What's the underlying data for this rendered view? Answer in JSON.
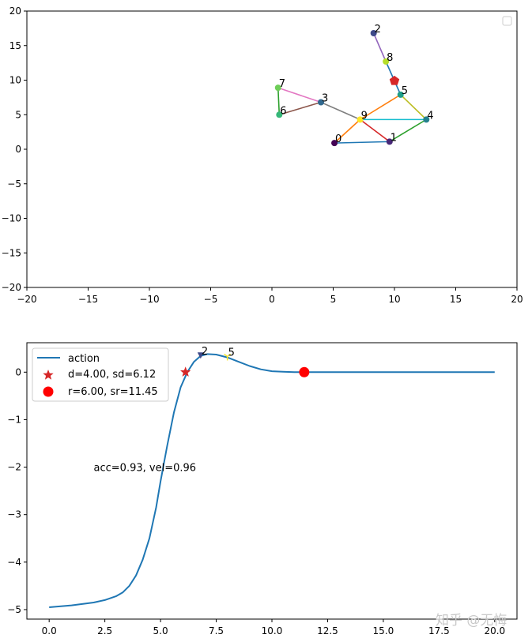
{
  "chart_data": [
    {
      "type": "scatter",
      "title": "",
      "xlabel": "",
      "ylabel": "",
      "xlim": [
        -20,
        20
      ],
      "ylim": [
        -20,
        20
      ],
      "xticks": [
        -20,
        -15,
        -10,
        -5,
        0,
        5,
        10,
        15,
        20
      ],
      "yticks": [
        -20,
        -15,
        -10,
        -5,
        0,
        5,
        10,
        15,
        20
      ],
      "xtick_labels": [
        "−20",
        "−15",
        "−10",
        "−5",
        "0",
        "5",
        "10",
        "15",
        "20"
      ],
      "ytick_labels": [
        "−20",
        "−15",
        "−10",
        "−5",
        "0",
        "5",
        "10",
        "15",
        "20"
      ],
      "grid": false,
      "legend": "top-right (empty)",
      "points": [
        {
          "label": "0",
          "x": 5.1,
          "y": 0.9,
          "color": "#440154"
        },
        {
          "label": "1",
          "x": 9.6,
          "y": 1.1,
          "color": "#482878"
        },
        {
          "label": "2",
          "x": 8.3,
          "y": 16.8,
          "color": "#3e4989"
        },
        {
          "label": "3",
          "x": 4.0,
          "y": 6.8,
          "color": "#31688e"
        },
        {
          "label": "4",
          "x": 12.6,
          "y": 4.3,
          "color": "#26828e"
        },
        {
          "label": "5",
          "x": 10.5,
          "y": 7.9,
          "color": "#1f9e89"
        },
        {
          "label": "6",
          "x": 0.6,
          "y": 5.0,
          "color": "#35b779"
        },
        {
          "label": "7",
          "x": 0.5,
          "y": 8.9,
          "color": "#6ece58"
        },
        {
          "label": "8",
          "x": 9.3,
          "y": 12.7,
          "color": "#b5de2b"
        },
        {
          "label": "9",
          "x": 7.2,
          "y": 4.3,
          "color": "#fde725"
        }
      ],
      "edges": [
        {
          "from": 0,
          "to": 1,
          "color": "#1f77b4"
        },
        {
          "from": 0,
          "to": 9,
          "color": "#ff7f0e"
        },
        {
          "from": 1,
          "to": 4,
          "color": "#2ca02c"
        },
        {
          "from": 1,
          "to": 9,
          "color": "#d62728"
        },
        {
          "from": 2,
          "to": 8,
          "color": "#9467bd"
        },
        {
          "from": 3,
          "to": 6,
          "color": "#8c564b"
        },
        {
          "from": 3,
          "to": 7,
          "color": "#e377c2"
        },
        {
          "from": 3,
          "to": 9,
          "color": "#7f7f7f"
        },
        {
          "from": 4,
          "to": 5,
          "color": "#bcbd22"
        },
        {
          "from": 4,
          "to": 9,
          "color": "#17becf"
        },
        {
          "from": 5,
          "to": 9,
          "color": "#ff7f0e"
        },
        {
          "from": 5,
          "to": 8,
          "color": "#1f77b4"
        },
        {
          "from": 6,
          "to": 7,
          "color": "#2ca02c"
        }
      ],
      "target_marker": {
        "x": 10.0,
        "y": 9.9,
        "color": "#d62728",
        "shape": "pentagon"
      }
    },
    {
      "type": "line",
      "title": "",
      "xlabel": "",
      "ylabel": "",
      "xlim": [
        -1,
        21
      ],
      "ylim": [
        -5.2,
        0.62
      ],
      "xticks": [
        0,
        2.5,
        5,
        7.5,
        10,
        12.5,
        15,
        17.5,
        20
      ],
      "yticks": [
        0,
        -1,
        -2,
        -3,
        -4,
        -5
      ],
      "xtick_labels": [
        "0.0",
        "2.5",
        "5.0",
        "7.5",
        "10.0",
        "12.5",
        "15.0",
        "17.5",
        "20.0"
      ],
      "ytick_labels": [
        "0",
        "−1",
        "−2",
        "−3",
        "−4",
        "−5"
      ],
      "grid": false,
      "legend": "top-left",
      "series": [
        {
          "name": "action",
          "color": "#1f77b4",
          "x": [
            0,
            1,
            2,
            2.5,
            3,
            3.3,
            3.6,
            3.9,
            4.2,
            4.5,
            4.8,
            5.0,
            5.3,
            5.6,
            5.9,
            6.2,
            6.5,
            6.8,
            7.1,
            7.5,
            8.0,
            8.5,
            9.0,
            9.5,
            10.0,
            10.5,
            11.0,
            11.45,
            12,
            14,
            16,
            18,
            20
          ],
          "y": [
            -4.95,
            -4.91,
            -4.85,
            -4.8,
            -4.72,
            -4.64,
            -4.5,
            -4.28,
            -3.95,
            -3.5,
            -2.85,
            -2.3,
            -1.55,
            -0.85,
            -0.32,
            0.0,
            0.22,
            0.34,
            0.38,
            0.37,
            0.31,
            0.22,
            0.13,
            0.06,
            0.02,
            0.01,
            0.0,
            0.0,
            0.0,
            0.0,
            0.0,
            0.0,
            0.0
          ]
        }
      ],
      "markers": [
        {
          "legend": "d=4.00, sd=6.12",
          "shape": "star",
          "x": 6.12,
          "y": 0.0,
          "color": "#d62728"
        },
        {
          "legend": "r=6.00, sr=11.45",
          "shape": "circle",
          "x": 11.45,
          "y": 0.0,
          "color": "#ff0000"
        }
      ],
      "point_labels": [
        {
          "text": "2",
          "x": 6.8,
          "y": 0.35,
          "color": "#3e4989",
          "shape": "triangle-down"
        },
        {
          "text": "5",
          "x": 8.0,
          "y": 0.33,
          "color": "#fde725",
          "shape": "tri"
        }
      ],
      "annotation": {
        "text": "acc=0.93, vel=0.96",
        "x": 2.0,
        "y": -2.0
      }
    }
  ],
  "watermark": "知乎 @无悔"
}
